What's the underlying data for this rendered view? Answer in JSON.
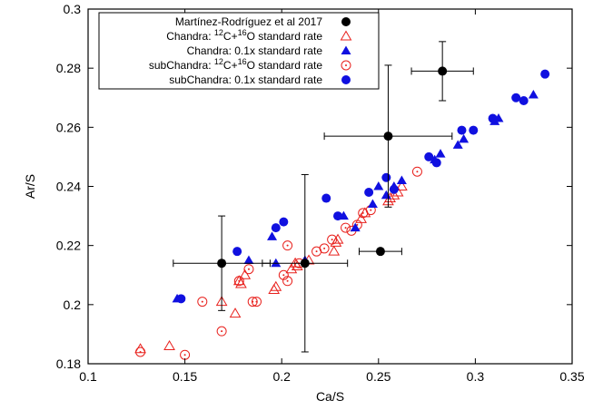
{
  "chart_data": {
    "type": "scatter",
    "xlabel": "Ca/S",
    "ylabel": "Ar/S",
    "xlim": [
      0.1,
      0.35
    ],
    "ylim": [
      0.18,
      0.3
    ],
    "xticks": [
      0.1,
      0.15,
      0.2,
      0.25,
      0.3,
      0.35
    ],
    "xtick_labels": [
      "0.1",
      "0.15",
      "0.2",
      "0.25",
      "0.3",
      "0.35"
    ],
    "yticks": [
      0.18,
      0.2,
      0.22,
      0.24,
      0.26,
      0.28,
      0.3
    ],
    "ytick_labels": [
      "0.18",
      "0.2",
      "0.22",
      "0.24",
      "0.26",
      "0.28",
      "0.3"
    ],
    "grid": false,
    "legend_position": "top-left",
    "series": [
      {
        "name": "Martínez-Rodríguez et al 2017",
        "marker": "filled-circle",
        "color": "#000000",
        "points": [
          {
            "x": 0.169,
            "y": 0.214,
            "xerr": 0.025,
            "yerr": 0.016
          },
          {
            "x": 0.212,
            "y": 0.214,
            "xerr": 0.022,
            "yerr": 0.03
          },
          {
            "x": 0.251,
            "y": 0.218,
            "xerr": 0.011,
            "yerr": 0.0
          },
          {
            "x": 0.255,
            "y": 0.257,
            "xerr": 0.033,
            "yerr": 0.024
          },
          {
            "x": 0.283,
            "y": 0.279,
            "xerr": 0.016,
            "yerr": 0.01
          }
        ]
      },
      {
        "name": "Chandra: {12}C+{16}O standard rate",
        "marker": "open-triangle",
        "color": "#e8201c",
        "points": [
          {
            "x": 0.127,
            "y": 0.185
          },
          {
            "x": 0.142,
            "y": 0.186
          },
          {
            "x": 0.169,
            "y": 0.201
          },
          {
            "x": 0.176,
            "y": 0.197
          },
          {
            "x": 0.178,
            "y": 0.208
          },
          {
            "x": 0.179,
            "y": 0.207
          },
          {
            "x": 0.181,
            "y": 0.21
          },
          {
            "x": 0.196,
            "y": 0.205
          },
          {
            "x": 0.197,
            "y": 0.206
          },
          {
            "x": 0.205,
            "y": 0.212
          },
          {
            "x": 0.207,
            "y": 0.214
          },
          {
            "x": 0.208,
            "y": 0.213
          },
          {
            "x": 0.214,
            "y": 0.215
          },
          {
            "x": 0.227,
            "y": 0.218
          },
          {
            "x": 0.228,
            "y": 0.221
          },
          {
            "x": 0.229,
            "y": 0.222
          },
          {
            "x": 0.241,
            "y": 0.229
          },
          {
            "x": 0.243,
            "y": 0.231
          },
          {
            "x": 0.255,
            "y": 0.235
          },
          {
            "x": 0.256,
            "y": 0.236
          },
          {
            "x": 0.258,
            "y": 0.237
          },
          {
            "x": 0.26,
            "y": 0.238
          },
          {
            "x": 0.262,
            "y": 0.24
          }
        ]
      },
      {
        "name": "Chandra: 0.1x standard rate",
        "marker": "filled-triangle",
        "color": "#1010e0",
        "points": [
          {
            "x": 0.146,
            "y": 0.202
          },
          {
            "x": 0.183,
            "y": 0.215
          },
          {
            "x": 0.195,
            "y": 0.223
          },
          {
            "x": 0.197,
            "y": 0.214
          },
          {
            "x": 0.212,
            "y": 0.215
          },
          {
            "x": 0.232,
            "y": 0.23
          },
          {
            "x": 0.238,
            "y": 0.226
          },
          {
            "x": 0.247,
            "y": 0.234
          },
          {
            "x": 0.25,
            "y": 0.24
          },
          {
            "x": 0.254,
            "y": 0.237
          },
          {
            "x": 0.258,
            "y": 0.24
          },
          {
            "x": 0.262,
            "y": 0.242
          },
          {
            "x": 0.279,
            "y": 0.249
          },
          {
            "x": 0.282,
            "y": 0.251
          },
          {
            "x": 0.291,
            "y": 0.254
          },
          {
            "x": 0.294,
            "y": 0.256
          },
          {
            "x": 0.31,
            "y": 0.262
          },
          {
            "x": 0.312,
            "y": 0.263
          },
          {
            "x": 0.33,
            "y": 0.271
          }
        ]
      },
      {
        "name": "subChandra: {12}C+{16}O standard rate",
        "marker": "circle-dot",
        "color": "#e8201c",
        "points": [
          {
            "x": 0.127,
            "y": 0.184
          },
          {
            "x": 0.15,
            "y": 0.183
          },
          {
            "x": 0.159,
            "y": 0.201
          },
          {
            "x": 0.169,
            "y": 0.191
          },
          {
            "x": 0.178,
            "y": 0.208
          },
          {
            "x": 0.183,
            "y": 0.212
          },
          {
            "x": 0.185,
            "y": 0.201
          },
          {
            "x": 0.187,
            "y": 0.201
          },
          {
            "x": 0.201,
            "y": 0.21
          },
          {
            "x": 0.203,
            "y": 0.22
          },
          {
            "x": 0.203,
            "y": 0.208
          },
          {
            "x": 0.209,
            "y": 0.214
          },
          {
            "x": 0.218,
            "y": 0.218
          },
          {
            "x": 0.222,
            "y": 0.219
          },
          {
            "x": 0.226,
            "y": 0.222
          },
          {
            "x": 0.233,
            "y": 0.226
          },
          {
            "x": 0.236,
            "y": 0.225
          },
          {
            "x": 0.239,
            "y": 0.227
          },
          {
            "x": 0.242,
            "y": 0.231
          },
          {
            "x": 0.246,
            "y": 0.232
          },
          {
            "x": 0.27,
            "y": 0.245
          }
        ]
      },
      {
        "name": "subChandra: 0.1x standard rate",
        "marker": "filled-circle",
        "color": "#1010e0",
        "points": [
          {
            "x": 0.148,
            "y": 0.202
          },
          {
            "x": 0.177,
            "y": 0.218
          },
          {
            "x": 0.197,
            "y": 0.226
          },
          {
            "x": 0.201,
            "y": 0.228
          },
          {
            "x": 0.223,
            "y": 0.236
          },
          {
            "x": 0.229,
            "y": 0.23
          },
          {
            "x": 0.245,
            "y": 0.238
          },
          {
            "x": 0.254,
            "y": 0.243
          },
          {
            "x": 0.258,
            "y": 0.239
          },
          {
            "x": 0.276,
            "y": 0.25
          },
          {
            "x": 0.28,
            "y": 0.248
          },
          {
            "x": 0.293,
            "y": 0.259
          },
          {
            "x": 0.299,
            "y": 0.259
          },
          {
            "x": 0.309,
            "y": 0.263
          },
          {
            "x": 0.321,
            "y": 0.27
          },
          {
            "x": 0.325,
            "y": 0.269
          },
          {
            "x": 0.336,
            "y": 0.278
          }
        ]
      }
    ]
  }
}
